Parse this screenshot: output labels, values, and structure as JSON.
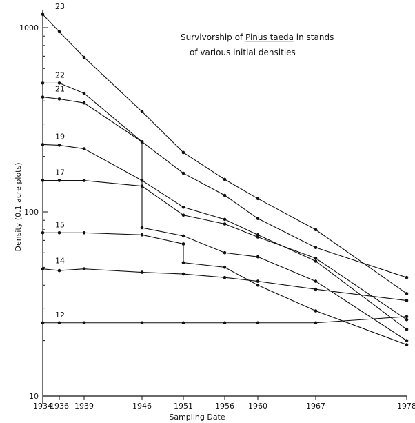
{
  "chart_data": {
    "type": "line",
    "title_lines": [
      {
        "before": "Survivorship of ",
        "emph": "Pinus taeda",
        "after": " in stands"
      },
      {
        "before": "of various initial densities",
        "emph": "",
        "after": ""
      }
    ],
    "xlabel": "Sampling Date",
    "ylabel": "Density (0.1 acre plots)",
    "y_scale": "log",
    "ylim": [
      10,
      1300
    ],
    "xlim": [
      1934,
      1978
    ],
    "x_ticks": [
      1934,
      1936,
      1939,
      1946,
      1951,
      1956,
      1960,
      1967,
      1978
    ],
    "x_tick_labels": [
      "1934",
      "1936",
      "1939",
      "1946",
      "1951",
      "1956",
      "1960",
      "1967",
      "1978"
    ],
    "y_ticks": [
      10,
      100,
      1000
    ],
    "y_tick_labels": [
      "10",
      "100",
      "1000"
    ],
    "series": [
      {
        "name": "23",
        "points": [
          [
            1934,
            1180
          ],
          [
            1936,
            950
          ],
          [
            1939,
            690
          ],
          [
            1946,
            350
          ],
          [
            1951,
            210
          ],
          [
            1956,
            150
          ],
          [
            1960,
            118
          ],
          [
            1967,
            80
          ],
          [
            1978,
            36
          ]
        ]
      },
      {
        "name": "22",
        "points": [
          [
            1934,
            500
          ],
          [
            1936,
            500
          ],
          [
            1939,
            440
          ],
          [
            1946,
            240
          ],
          [
            1946,
            82
          ],
          [
            1951,
            74
          ],
          [
            1956,
            60
          ],
          [
            1960,
            57
          ],
          [
            1967,
            42
          ],
          [
            1978,
            20
          ]
        ]
      },
      {
        "name": "21",
        "points": [
          [
            1934,
            420
          ],
          [
            1936,
            410
          ],
          [
            1939,
            390
          ],
          [
            1946,
            240
          ],
          [
            1951,
            162
          ],
          [
            1956,
            123
          ],
          [
            1960,
            92
          ],
          [
            1967,
            64
          ],
          [
            1978,
            44
          ]
        ]
      },
      {
        "name": "19",
        "points": [
          [
            1934,
            232
          ],
          [
            1936,
            230
          ],
          [
            1939,
            220
          ],
          [
            1946,
            148
          ],
          [
            1951,
            106
          ],
          [
            1956,
            91
          ],
          [
            1960,
            75
          ],
          [
            1967,
            54
          ],
          [
            1978,
            23
          ]
        ]
      },
      {
        "name": "17",
        "points": [
          [
            1934,
            148
          ],
          [
            1936,
            148
          ],
          [
            1939,
            148
          ],
          [
            1946,
            138
          ],
          [
            1951,
            96
          ],
          [
            1956,
            86
          ],
          [
            1960,
            73
          ],
          [
            1967,
            56
          ],
          [
            1978,
            26
          ]
        ]
      },
      {
        "name": "15",
        "points": [
          [
            1934,
            77
          ],
          [
            1936,
            77
          ],
          [
            1939,
            77
          ],
          [
            1946,
            75
          ],
          [
            1951,
            67
          ],
          [
            1951,
            53
          ],
          [
            1956,
            50
          ],
          [
            1960,
            40
          ],
          [
            1967,
            29
          ],
          [
            1978,
            19
          ]
        ]
      },
      {
        "name": "14",
        "points": [
          [
            1934,
            49
          ],
          [
            1936,
            48
          ],
          [
            1939,
            49
          ],
          [
            1946,
            47
          ],
          [
            1951,
            46
          ],
          [
            1956,
            44
          ],
          [
            1960,
            42
          ],
          [
            1967,
            38
          ],
          [
            1978,
            33
          ]
        ]
      },
      {
        "name": "12",
        "points": [
          [
            1934,
            25
          ],
          [
            1936,
            25
          ],
          [
            1939,
            25
          ],
          [
            1946,
            25
          ],
          [
            1951,
            25
          ],
          [
            1956,
            25
          ],
          [
            1960,
            25
          ],
          [
            1967,
            25
          ],
          [
            1978,
            27
          ]
        ]
      }
    ]
  }
}
